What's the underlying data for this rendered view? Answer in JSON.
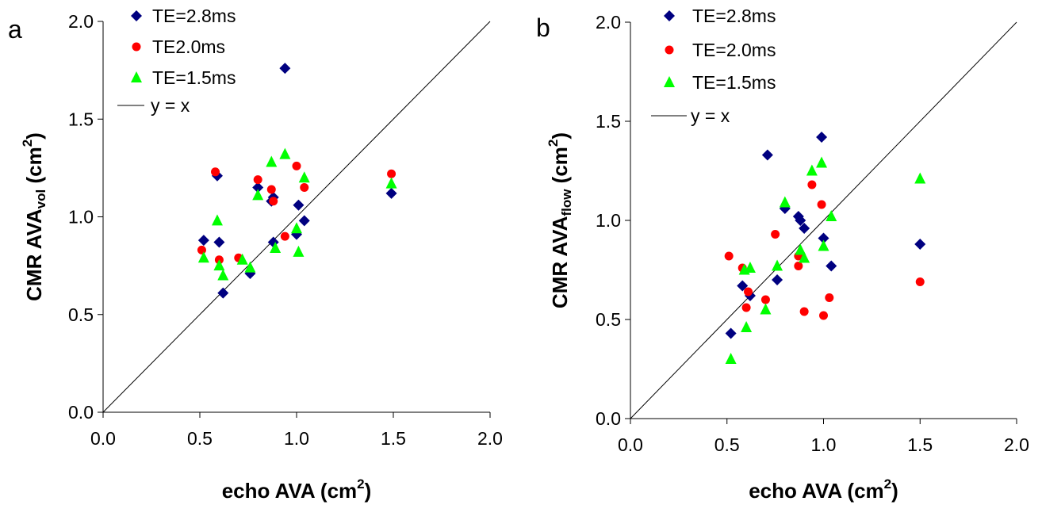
{
  "chart_data": [
    {
      "type": "scatter",
      "panel_label": "a",
      "xlabel": {
        "main": "echo AVA (cm",
        "sup": "2",
        "tail": ")"
      },
      "ylabel": {
        "main": "CMR AVA",
        "sub": "vol",
        "mid": " (cm",
        "sup": "2",
        "tail": ")"
      },
      "xlim": [
        0,
        2.0
      ],
      "ylim": [
        0,
        2.0
      ],
      "xticks": [
        "0.0",
        "0.5",
        "1.0",
        "1.5",
        "2.0"
      ],
      "yticks": [
        "0.0",
        "0.5",
        "1.0",
        "1.5",
        "2.0"
      ],
      "grid": false,
      "legend_position": "top-left",
      "reference_line_label": "y = x",
      "series": [
        {
          "name": "TE=2.8ms",
          "marker": "diamond",
          "color": "#000080",
          "points": [
            [
              0.52,
              0.88
            ],
            [
              0.59,
              1.21
            ],
            [
              0.6,
              0.87
            ],
            [
              0.62,
              0.61
            ],
            [
              0.76,
              0.71
            ],
            [
              0.8,
              1.15
            ],
            [
              0.87,
              1.08
            ],
            [
              0.88,
              1.1
            ],
            [
              0.88,
              0.87
            ],
            [
              0.94,
              1.76
            ],
            [
              1.0,
              0.91
            ],
            [
              1.01,
              1.06
            ],
            [
              1.04,
              0.98
            ],
            [
              1.49,
              1.12
            ]
          ]
        },
        {
          "name": "TE2.0ms",
          "marker": "circle",
          "color": "#ff0000",
          "points": [
            [
              0.51,
              0.83
            ],
            [
              0.58,
              1.23
            ],
            [
              0.6,
              0.78
            ],
            [
              0.7,
              0.79
            ],
            [
              0.8,
              1.19
            ],
            [
              0.87,
              1.14
            ],
            [
              0.88,
              1.08
            ],
            [
              0.94,
              0.9
            ],
            [
              1.0,
              1.26
            ],
            [
              1.04,
              1.15
            ],
            [
              1.49,
              1.22
            ]
          ]
        },
        {
          "name": "TE=1.5ms",
          "marker": "triangle",
          "color": "#00ff00",
          "points": [
            [
              0.52,
              0.79
            ],
            [
              0.59,
              0.98
            ],
            [
              0.6,
              0.75
            ],
            [
              0.62,
              0.7
            ],
            [
              0.72,
              0.78
            ],
            [
              0.76,
              0.74
            ],
            [
              0.8,
              1.11
            ],
            [
              0.87,
              1.28
            ],
            [
              0.89,
              0.84
            ],
            [
              0.94,
              1.32
            ],
            [
              1.0,
              0.94
            ],
            [
              1.01,
              0.82
            ],
            [
              1.04,
              1.2
            ],
            [
              1.49,
              1.17
            ]
          ]
        }
      ]
    },
    {
      "type": "scatter",
      "panel_label": "b",
      "xlabel": {
        "main": "echo AVA (cm",
        "sup": "2",
        "tail": ")"
      },
      "ylabel": {
        "main": "CMR AVA",
        "sub": "flow",
        "mid": " (cm",
        "sup": "2",
        "tail": ")"
      },
      "xlim": [
        0,
        2.0
      ],
      "ylim": [
        0,
        2.0
      ],
      "xticks": [
        "0.0",
        "0.5",
        "1.0",
        "1.5",
        "2.0"
      ],
      "yticks": [
        "0.0",
        "0.5",
        "1.0",
        "1.5",
        "2.0"
      ],
      "grid": false,
      "legend_position": "top-left",
      "reference_line_label": "y = x",
      "series": [
        {
          "name": "TE=2.8ms",
          "marker": "diamond",
          "color": "#000080",
          "points": [
            [
              0.52,
              0.43
            ],
            [
              0.58,
              0.67
            ],
            [
              0.62,
              0.62
            ],
            [
              0.71,
              1.33
            ],
            [
              0.76,
              0.7
            ],
            [
              0.8,
              1.06
            ],
            [
              0.87,
              1.02
            ],
            [
              0.88,
              1.0
            ],
            [
              0.9,
              0.96
            ],
            [
              0.99,
              1.42
            ],
            [
              1.0,
              0.91
            ],
            [
              1.04,
              0.77
            ],
            [
              1.5,
              0.88
            ]
          ]
        },
        {
          "name": "TE=2.0ms",
          "marker": "circle",
          "color": "#ff0000",
          "points": [
            [
              0.51,
              0.82
            ],
            [
              0.58,
              0.76
            ],
            [
              0.6,
              0.56
            ],
            [
              0.61,
              0.64
            ],
            [
              0.7,
              0.6
            ],
            [
              0.75,
              0.93
            ],
            [
              0.87,
              0.77
            ],
            [
              0.87,
              0.82
            ],
            [
              0.9,
              0.54
            ],
            [
              0.94,
              1.18
            ],
            [
              0.99,
              1.08
            ],
            [
              1.0,
              0.52
            ],
            [
              1.03,
              0.61
            ],
            [
              1.5,
              0.69
            ]
          ]
        },
        {
          "name": "TE=1.5ms",
          "marker": "triangle",
          "color": "#00ff00",
          "points": [
            [
              0.52,
              0.3
            ],
            [
              0.59,
              0.75
            ],
            [
              0.6,
              0.46
            ],
            [
              0.62,
              0.76
            ],
            [
              0.7,
              0.55
            ],
            [
              0.76,
              0.77
            ],
            [
              0.8,
              1.09
            ],
            [
              0.88,
              0.85
            ],
            [
              0.9,
              0.81
            ],
            [
              0.94,
              1.25
            ],
            [
              0.99,
              1.29
            ],
            [
              1.0,
              0.87
            ],
            [
              1.04,
              1.02
            ],
            [
              1.5,
              1.21
            ]
          ]
        }
      ]
    }
  ]
}
